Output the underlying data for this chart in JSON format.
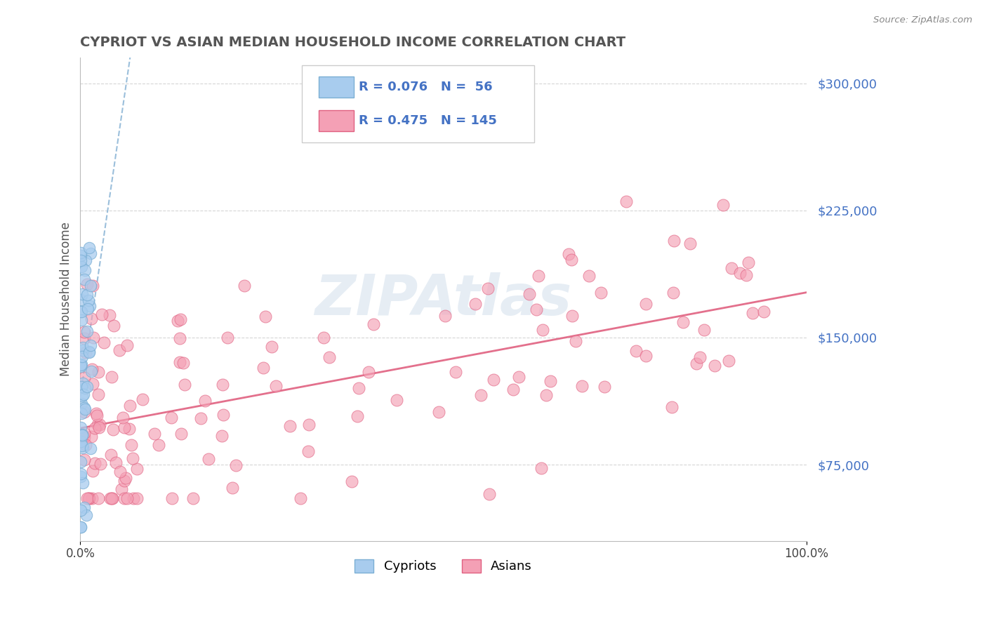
{
  "title": "CYPRIOT VS ASIAN MEDIAN HOUSEHOLD INCOME CORRELATION CHART",
  "source": "Source: ZipAtlas.com",
  "ylabel": "Median Household Income",
  "xlim": [
    0,
    1
  ],
  "ylim": [
    30000,
    315000
  ],
  "yticks": [
    75000,
    150000,
    225000,
    300000
  ],
  "ytick_labels": [
    "$75,000",
    "$150,000",
    "$225,000",
    "$300,000"
  ],
  "xtick_labels": [
    "0.0%",
    "100.0%"
  ],
  "cypriot_color": "#A8CCEE",
  "asian_color": "#F4A0B5",
  "cypriot_edge": "#7BAFD4",
  "asian_edge": "#E06080",
  "trend_cypriot_color": "#90B8D8",
  "trend_asian_color": "#E06080",
  "r_cypriot": 0.076,
  "n_cypriot": 56,
  "r_asian": 0.475,
  "n_asian": 145,
  "watermark": "ZIPAtlas",
  "watermark_color": "#C8D8E8",
  "title_color": "#555555",
  "ytick_color": "#4472C4",
  "background_color": "#FFFFFF",
  "grid_color": "#CCCCCC",
  "legend_r_cypriot": "R = 0.076",
  "legend_n_cypriot": "N =  56",
  "legend_r_asian": "R = 0.475",
  "legend_n_asian": "N = 145"
}
